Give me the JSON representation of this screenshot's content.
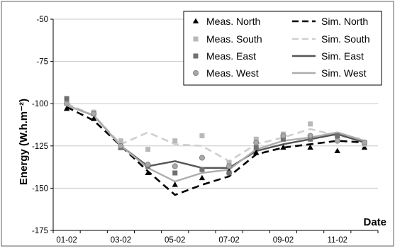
{
  "chart_data": {
    "type": "line",
    "title": "",
    "xlabel": "Date",
    "ylabel": "Energy (W.h.m⁻²)",
    "categories": [
      "01-02",
      "02-02",
      "03-02",
      "04-02",
      "05-02",
      "06-02",
      "07-02",
      "08-02",
      "09-02",
      "10-02",
      "11-02",
      "12-02"
    ],
    "x_tick_labels": [
      "01-02",
      "03-02",
      "05-02",
      "07-02",
      "09-02",
      "11-02"
    ],
    "ylim": [
      -175,
      -50
    ],
    "y_ticks": [
      -50,
      -75,
      -100,
      -125,
      -150,
      -175
    ],
    "grid": true,
    "legend_position": "top-right",
    "legend_columns": 2,
    "measured": [
      {
        "name": "Meas. North",
        "marker": "triangle",
        "color": "#000000",
        "values": [
          -103,
          -109,
          -126,
          -141,
          -148,
          -144,
          -140,
          -129,
          -126,
          -126,
          -128,
          -126
        ]
      },
      {
        "name": "Meas. South",
        "marker": "square",
        "color": "#b9b9b9",
        "values": [
          -99,
          -105,
          -122,
          -127,
          -122,
          -119,
          -135,
          -121,
          -118,
          -112,
          -121,
          -124
        ]
      },
      {
        "name": "Meas. East",
        "marker": "square",
        "color": "#707070",
        "values": [
          -97,
          -106,
          -126,
          -137,
          -141,
          -139,
          -141,
          -126,
          -121,
          -121,
          -119,
          -123
        ]
      },
      {
        "name": "Meas. West",
        "marker": "circle",
        "color": "#a8a8a8",
        "values": [
          -100,
          -106,
          -125,
          -136,
          -137,
          -132,
          -137,
          -123,
          -119,
          -119,
          -122,
          -123
        ]
      }
    ],
    "simulated": [
      {
        "name": "Sim. North",
        "color": "#000000",
        "dash": "10 6",
        "width": 2.6,
        "values": [
          -102,
          -110,
          -125,
          -140,
          -154,
          -148,
          -143,
          -130,
          -126,
          -124,
          -122,
          -123
        ]
      },
      {
        "name": "Sim. South",
        "color": "#cfcfcf",
        "dash": "10 6",
        "width": 2.6,
        "values": [
          -100,
          -107,
          -124,
          -117,
          -124,
          -125,
          -134,
          -124,
          -120,
          -115,
          -119,
          -121
        ]
      },
      {
        "name": "Sim. East",
        "color": "#555555",
        "dash": "",
        "width": 2.4,
        "values": [
          -101,
          -107,
          -125,
          -137,
          -134,
          -138,
          -138,
          -128,
          -124,
          -121,
          -118,
          -123
        ]
      },
      {
        "name": "Sim. West",
        "color": "#adadad",
        "dash": "",
        "width": 2.4,
        "values": [
          -101,
          -107,
          -125,
          -138,
          -146,
          -141,
          -139,
          -127,
          -122,
          -120,
          -117,
          -122
        ]
      }
    ]
  }
}
